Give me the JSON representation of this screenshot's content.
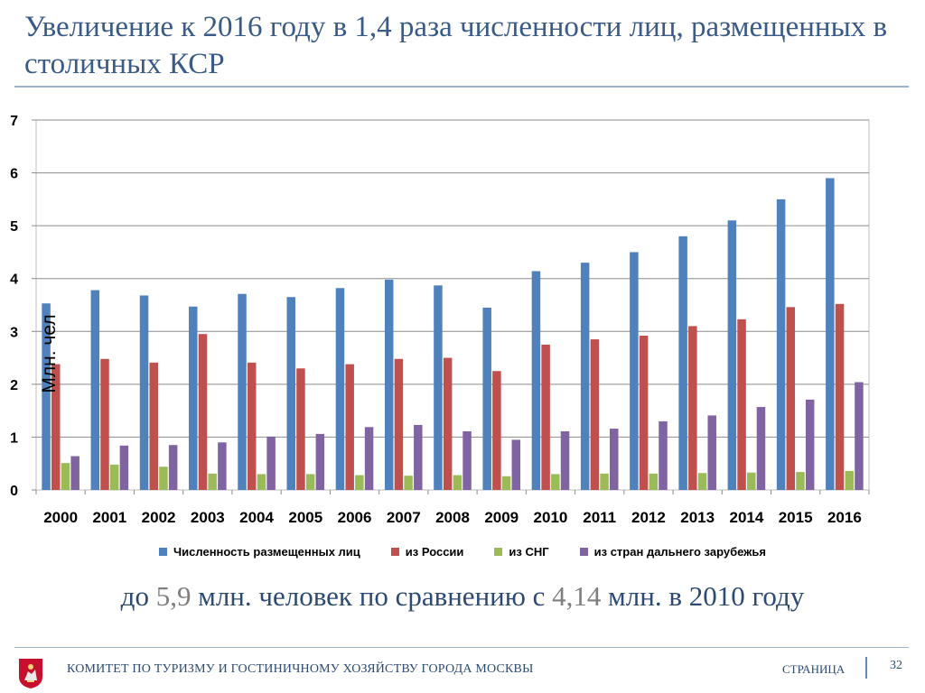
{
  "title": "Увеличение к 2016 году в 1,4 раза численности лиц, размещенных в столичных КСР",
  "note": {
    "prefix": "до ",
    "value1": "5,9",
    "middle": " млн. человек по сравнению с ",
    "value2": "4,14",
    "suffix": " млн. в 2010 году"
  },
  "footer": {
    "org": "КОМИТЕТ ПО ТУРИЗМУ И ГОСТИНИЧНОМУ ХОЗЯЙСТВУ ГОРОДА МОСКВЫ",
    "page_label": "СТРАНИЦА",
    "page_number": "32"
  },
  "chart_data": {
    "type": "bar",
    "categories": [
      "2000",
      "2001",
      "2002",
      "2003",
      "2004",
      "2005",
      "2006",
      "2007",
      "2008",
      "2009",
      "2010",
      "2011",
      "2012",
      "2013",
      "2014",
      "2015",
      "2016"
    ],
    "ylabel": "Млн. чел",
    "ylim": [
      0,
      7
    ],
    "yticks": [
      "0",
      "1",
      "2",
      "3",
      "4",
      "5",
      "6",
      "7"
    ],
    "grid": true,
    "legend_position": "bottom",
    "series": [
      {
        "name": "Численность размещенных лиц",
        "color": "#4f81bd",
        "values": [
          3.53,
          3.78,
          3.68,
          3.47,
          3.71,
          3.65,
          3.82,
          3.98,
          3.87,
          3.45,
          4.14,
          4.3,
          4.5,
          4.8,
          5.1,
          5.5,
          5.9
        ]
      },
      {
        "name": "из России",
        "color": "#c0504d",
        "values": [
          2.38,
          2.48,
          2.41,
          2.95,
          2.41,
          2.3,
          2.38,
          2.48,
          2.5,
          2.25,
          2.75,
          2.85,
          2.92,
          3.1,
          3.23,
          3.46,
          3.52
        ]
      },
      {
        "name": "из СНГ",
        "color": "#9bbb59",
        "values": [
          0.51,
          0.48,
          0.44,
          0.31,
          0.3,
          0.3,
          0.28,
          0.27,
          0.28,
          0.26,
          0.3,
          0.31,
          0.31,
          0.32,
          0.33,
          0.34,
          0.36
        ]
      },
      {
        "name": "из стран дальнего зарубежья",
        "color": "#8064a2",
        "values": [
          0.64,
          0.84,
          0.85,
          0.9,
          1.01,
          1.06,
          1.19,
          1.23,
          1.11,
          0.95,
          1.11,
          1.16,
          1.3,
          1.41,
          1.57,
          1.71,
          2.04
        ]
      }
    ]
  }
}
